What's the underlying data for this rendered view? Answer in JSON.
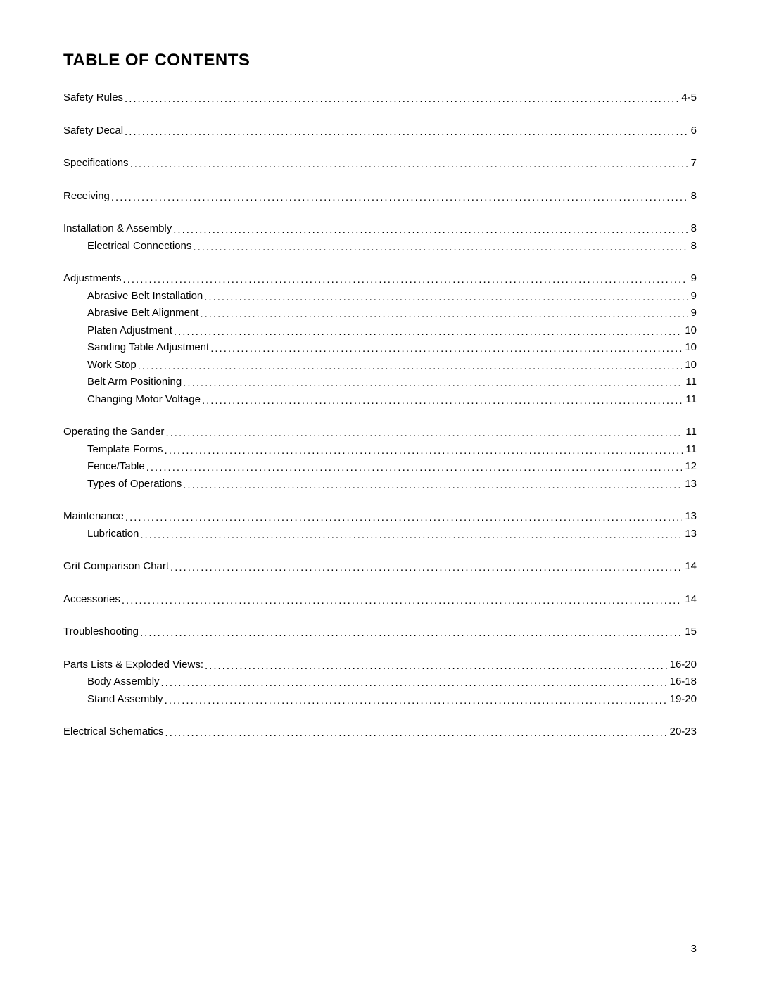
{
  "title": "TABLE OF CONTENTS",
  "page_number": "3",
  "sections": [
    {
      "items": [
        {
          "label": "Safety Rules",
          "page": "4-5",
          "indent": false
        }
      ]
    },
    {
      "items": [
        {
          "label": "Safety Decal",
          "page": "6",
          "indent": false
        }
      ]
    },
    {
      "items": [
        {
          "label": "Specifications",
          "page": "7",
          "indent": false
        }
      ]
    },
    {
      "items": [
        {
          "label": "Receiving",
          "page": "8",
          "indent": false
        }
      ]
    },
    {
      "items": [
        {
          "label": "Installation & Assembly",
          "page": "8",
          "indent": false
        },
        {
          "label": "Electrical Connections",
          "page": "8",
          "indent": true
        }
      ]
    },
    {
      "items": [
        {
          "label": "Adjustments",
          "page": "9",
          "indent": false
        },
        {
          "label": "Abrasive Belt Installation",
          "page": "9",
          "indent": true
        },
        {
          "label": "Abrasive Belt Alignment",
          "page": "9",
          "indent": true
        },
        {
          "label": "Platen Adjustment",
          "page": "10",
          "indent": true
        },
        {
          "label": "Sanding Table Adjustment",
          "page": "10",
          "indent": true
        },
        {
          "label": "Work Stop",
          "page": "10",
          "indent": true
        },
        {
          "label": "Belt Arm Positioning",
          "page": "11",
          "indent": true
        },
        {
          "label": "Changing Motor Voltage",
          "page": "11",
          "indent": true
        }
      ]
    },
    {
      "items": [
        {
          "label": "Operating the Sander",
          "page": "11",
          "indent": false
        },
        {
          "label": "Template Forms",
          "page": "11",
          "indent": true
        },
        {
          "label": "Fence/Table",
          "page": "12",
          "indent": true
        },
        {
          "label": "Types of Operations",
          "page": "13",
          "indent": true
        }
      ]
    },
    {
      "items": [
        {
          "label": "Maintenance",
          "page": "13",
          "indent": false
        },
        {
          "label": "Lubrication",
          "page": "13",
          "indent": true
        }
      ]
    },
    {
      "items": [
        {
          "label": "Grit Comparison Chart",
          "page": "14",
          "indent": false
        }
      ]
    },
    {
      "items": [
        {
          "label": "Accessories",
          "page": "14",
          "indent": false
        }
      ]
    },
    {
      "items": [
        {
          "label": "Troubleshooting",
          "page": "15",
          "indent": false
        }
      ]
    },
    {
      "items": [
        {
          "label": "Parts Lists & Exploded Views:",
          "page": "16-20",
          "indent": false
        },
        {
          "label": "Body Assembly",
          "page": "16-18",
          "indent": true
        },
        {
          "label": "Stand Assembly",
          "page": "19-20",
          "indent": true
        }
      ]
    },
    {
      "items": [
        {
          "label": "Electrical Schematics",
          "page": "20-23",
          "indent": false
        }
      ]
    }
  ]
}
